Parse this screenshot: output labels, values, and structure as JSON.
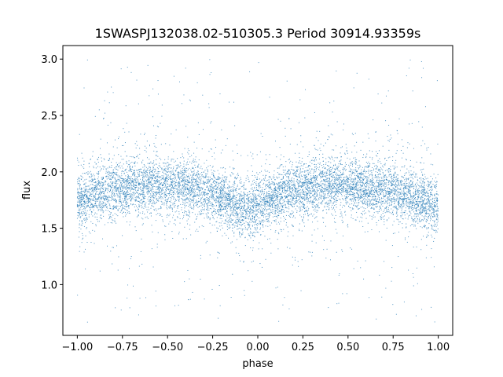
{
  "chart_data": {
    "type": "scatter",
    "title": "1SWASPJ132038.02-510305.3 Period 30914.93359s",
    "xlabel": "phase",
    "ylabel": "flux",
    "xlim": [
      -1.08,
      1.08
    ],
    "ylim": [
      0.55,
      3.12
    ],
    "x_ticks": [
      -1.0,
      -0.75,
      -0.5,
      -0.25,
      0.0,
      0.25,
      0.5,
      0.75,
      1.0
    ],
    "x_tick_labels": [
      "−1.00",
      "−0.75",
      "−0.50",
      "−0.25",
      "0.00",
      "0.25",
      "0.50",
      "0.75",
      "1.00"
    ],
    "y_ticks": [
      1.0,
      1.5,
      2.0,
      2.5,
      3.0
    ],
    "y_tick_labels": [
      "1.0",
      "1.5",
      "2.0",
      "2.5",
      "3.0"
    ],
    "grid": false,
    "marker_color": "#1f77b4",
    "phase_range": [
      -1.0,
      1.0
    ],
    "flux_range": [
      0.65,
      3.0
    ],
    "series": [
      {
        "x": [
          -1.0,
          -0.9,
          -0.8,
          -0.7,
          -0.6,
          -0.5,
          -0.4,
          -0.3,
          -0.2,
          -0.1,
          0.0,
          0.1,
          0.2,
          0.3,
          0.4,
          0.5,
          0.6,
          0.7,
          0.8,
          0.9,
          1.0
        ],
        "y": [
          1.75,
          1.8,
          1.84,
          1.87,
          1.88,
          1.88,
          1.86,
          1.83,
          1.76,
          1.68,
          1.7,
          1.78,
          1.84,
          1.87,
          1.88,
          1.88,
          1.86,
          1.84,
          1.8,
          1.74,
          1.7
        ]
      }
    ]
  }
}
